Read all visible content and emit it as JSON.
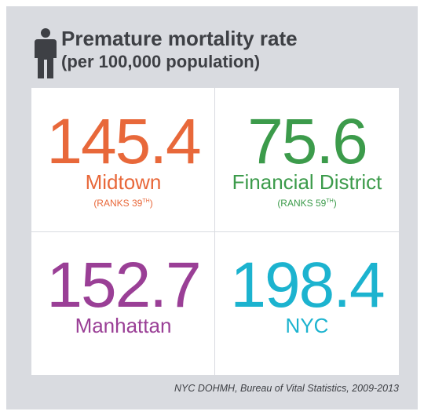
{
  "header": {
    "title": "Premature mortality rate",
    "subtitle": "(per 100,000 population)"
  },
  "cells": [
    {
      "value": 145.4,
      "label": "Midtown",
      "rank": [
        "(RANKS 39",
        "TH",
        ")"
      ],
      "color": "#e8683a"
    },
    {
      "value": 75.6,
      "label": "Financial District",
      "rank": [
        "(RANKS 59",
        "TH",
        ")"
      ],
      "color": "#3c9b4b"
    },
    {
      "value": 152.7,
      "label": "Manhattan",
      "color": "#9a3f96"
    },
    {
      "value": 198.4,
      "label": "NYC",
      "color": "#1cb3cf"
    }
  ],
  "source": "NYC DOHMH, Bureau of Vital Statistics, 2009-2013"
}
